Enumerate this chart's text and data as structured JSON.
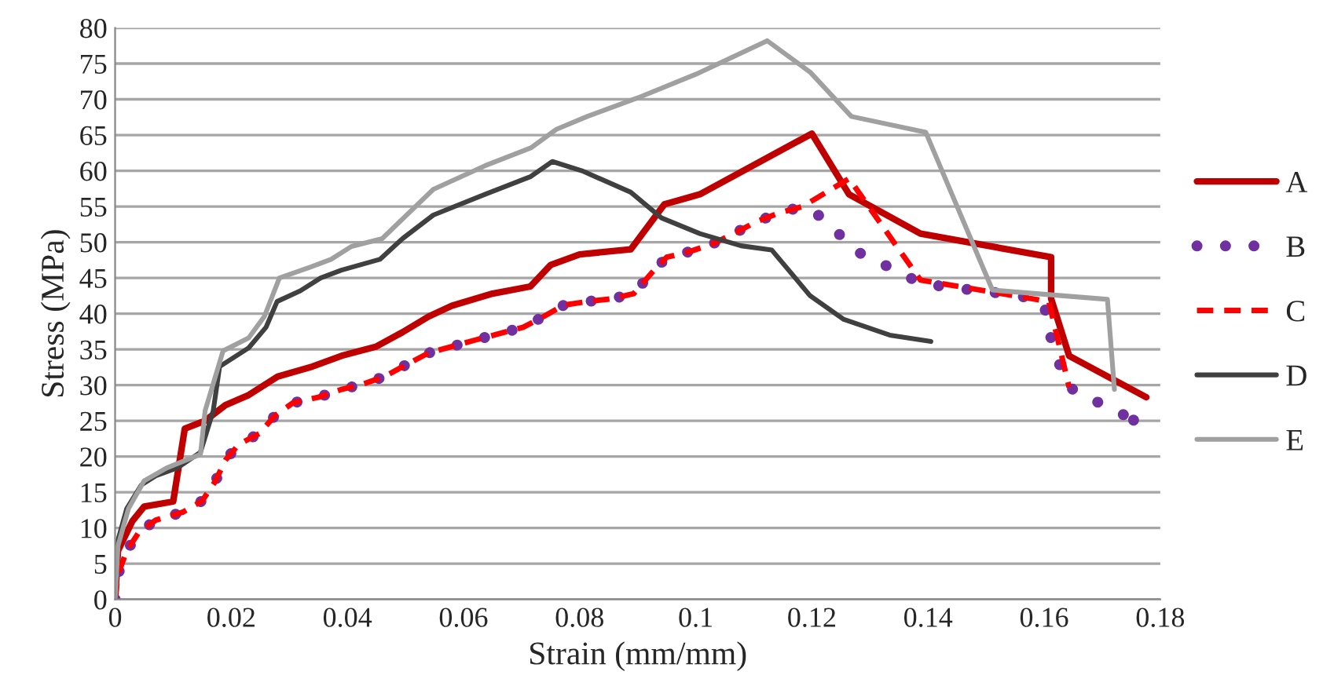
{
  "chart_data": {
    "type": "line",
    "xlabel": "Strain (mm/mm)",
    "ylabel": "Stress (MPa)",
    "xlim": [
      0,
      0.18
    ],
    "xticks": [
      0,
      0.02,
      0.04,
      0.06,
      0.08,
      0.1,
      0.12,
      0.14,
      0.16,
      0.18
    ],
    "ylim": [
      0,
      80
    ],
    "yticks": [
      0,
      5,
      10,
      15,
      20,
      25,
      30,
      35,
      40,
      45,
      50,
      55,
      60,
      65,
      70,
      75,
      80
    ],
    "grid": "y",
    "legend": "right",
    "marker": "none",
    "series": [
      {
        "name": "A",
        "color": "#c00000",
        "line_style": "solid",
        "x": [
          0,
          0.0005,
          0.003,
          0.005,
          0.01,
          0.012,
          0.0155,
          0.019,
          0.023,
          0.028,
          0.034,
          0.039,
          0.045,
          0.0495,
          0.054,
          0.058,
          0.065,
          0.0715,
          0.075,
          0.08,
          0.0888,
          0.0946,
          0.1007,
          0.12,
          0.1264,
          0.1387,
          0.1612,
          0.1612,
          0.1643,
          0.1776
        ],
        "values": [
          0,
          6.8,
          11,
          13,
          13.7,
          23.9,
          25,
          27.2,
          28.6,
          31.2,
          32.6,
          34.1,
          35.4,
          37.4,
          39.6,
          41.1,
          42.8,
          43.8,
          46.8,
          48.3,
          49,
          55.3,
          56.7,
          65.2,
          56.7,
          51.2,
          47.9,
          42.1,
          34.1,
          28.3
        ]
      },
      {
        "name": "B",
        "color": "#7030a0",
        "line_style": "dotted",
        "x": [
          0,
          0.0005,
          0.002,
          0.004,
          0.007,
          0.0116,
          0.015,
          0.0173,
          0.019,
          0.0213,
          0.0248,
          0.0275,
          0.0306,
          0.035,
          0.039,
          0.0425,
          0.0464,
          0.05,
          0.054,
          0.062,
          0.0703,
          0.0738,
          0.0773,
          0.0813,
          0.0857,
          0.0893,
          0.0924,
          0.095,
          0.099,
          0.103,
          0.107,
          0.1105,
          0.1144,
          0.1184,
          0.1215,
          0.1246,
          0.1274,
          0.1312,
          0.1347,
          0.1387,
          0.1427,
          0.1467,
          0.1511,
          0.1553,
          0.1592,
          0.1608,
          0.1612,
          0.1626,
          0.1643,
          0.1679,
          0.1717,
          0.1754
        ],
        "values": [
          0,
          3.5,
          6.8,
          9.3,
          11.1,
          12.2,
          13.8,
          16.6,
          19.5,
          21.7,
          23.2,
          25.7,
          27.5,
          28.3,
          29.4,
          30.1,
          31.2,
          32.8,
          34.5,
          36.3,
          38.1,
          39.6,
          41.2,
          41.7,
          42.1,
          42.8,
          45.7,
          47.9,
          48.7,
          49.8,
          51.4,
          52.9,
          54.1,
          55.0,
          53.6,
          51.2,
          48.8,
          47.4,
          45.9,
          44.3,
          43.8,
          43.4,
          43.0,
          42.5,
          42.0,
          39.6,
          36.3,
          33.0,
          29.7,
          28.1,
          26.7,
          25.1
        ]
      },
      {
        "name": "C",
        "color": "#ff0000",
        "line_style": "dashed",
        "x": [
          0,
          0.0005,
          0.002,
          0.004,
          0.007,
          0.0116,
          0.015,
          0.0173,
          0.019,
          0.0213,
          0.0248,
          0.0275,
          0.0306,
          0.035,
          0.039,
          0.0425,
          0.0464,
          0.05,
          0.054,
          0.062,
          0.0703,
          0.0738,
          0.0773,
          0.0813,
          0.0857,
          0.0893,
          0.0924,
          0.095,
          0.099,
          0.103,
          0.107,
          0.1105,
          0.1144,
          0.1184,
          0.1264,
          0.1387,
          0.1608,
          0.1643
        ],
        "values": [
          0,
          3.5,
          6.8,
          9.3,
          11.1,
          12.2,
          13.8,
          16.6,
          19.5,
          21.7,
          23.2,
          25.7,
          27.5,
          28.3,
          29.4,
          30.1,
          31.2,
          32.8,
          34.5,
          36.3,
          38.1,
          39.6,
          41.2,
          41.7,
          42.1,
          42.8,
          45.7,
          47.9,
          48.7,
          49.8,
          51.4,
          52.9,
          54.1,
          55.0,
          58.9,
          44.7,
          41.7,
          29.7
        ]
      },
      {
        "name": "D",
        "color": "#404040",
        "line_style": "solid",
        "x": [
          0,
          0.0005,
          0.002,
          0.0045,
          0.007,
          0.0107,
          0.0147,
          0.0169,
          0.018,
          0.023,
          0.026,
          0.0279,
          0.0319,
          0.0354,
          0.039,
          0.0456,
          0.0495,
          0.0548,
          0.0637,
          0.0716,
          0.0753,
          0.0804,
          0.0888,
          0.0941,
          0.1007,
          0.1078,
          0.1131,
          0.1197,
          0.1255,
          0.1334,
          0.1405
        ],
        "values": [
          0,
          8.3,
          12.7,
          16,
          17.3,
          18.4,
          20.6,
          26.4,
          32.6,
          35.2,
          38.1,
          41.7,
          43.2,
          45,
          46.1,
          47.6,
          50.5,
          53.8,
          56.7,
          59.2,
          61.3,
          60,
          57,
          53.4,
          51.2,
          49.5,
          48.9,
          42.5,
          39.2,
          37.0,
          36.1
        ]
      },
      {
        "name": "E",
        "color": "#a0a0a0",
        "line_style": "solid",
        "x": [
          0,
          0.0005,
          0.0023,
          0.005,
          0.0089,
          0.0147,
          0.0155,
          0.0186,
          0.023,
          0.0257,
          0.0283,
          0.0336,
          0.0372,
          0.0407,
          0.046,
          0.0548,
          0.0637,
          0.0716,
          0.076,
          0.0813,
          0.09,
          0.1,
          0.1123,
          0.1197,
          0.1268,
          0.1396,
          0.1511,
          0.1709,
          0.1721
        ],
        "values": [
          0,
          7.5,
          12.7,
          16.6,
          18.4,
          20.3,
          26.4,
          34.8,
          36.6,
          39.6,
          45,
          46.5,
          47.6,
          49.4,
          50.5,
          57.4,
          60.7,
          63.2,
          65.8,
          67.6,
          70.2,
          73.5,
          78.2,
          73.8,
          67.6,
          65.4,
          43.3,
          42.0,
          29.4
        ]
      }
    ]
  }
}
